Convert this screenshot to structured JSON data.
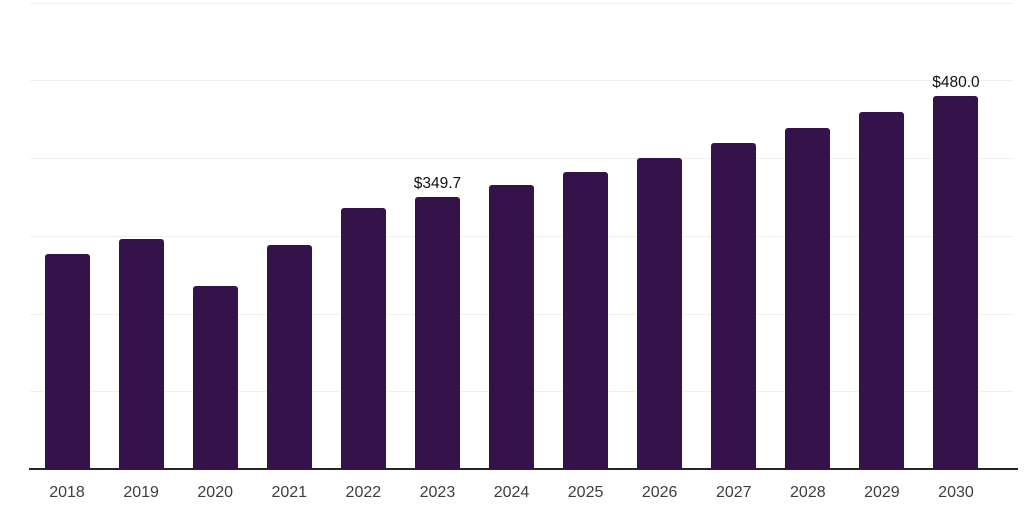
{
  "chart_data": {
    "type": "bar",
    "title": "",
    "xlabel": "",
    "ylabel": "",
    "categories": [
      "2018",
      "2019",
      "2020",
      "2021",
      "2022",
      "2023",
      "2024",
      "2025",
      "2026",
      "2027",
      "2028",
      "2029",
      "2030"
    ],
    "values": [
      276.6,
      295.9,
      235.4,
      288.2,
      335.8,
      349.7,
      365.9,
      382.8,
      400.6,
      419.1,
      438.5,
      458.8,
      480.0
    ],
    "data_labels": [
      null,
      null,
      null,
      null,
      null,
      "$349.7",
      null,
      null,
      null,
      null,
      null,
      null,
      "$480.0"
    ],
    "ylim": [
      0,
      600
    ],
    "grid_interval": 100,
    "grid": "horizontal",
    "legend": "none",
    "style": {
      "bar_color": "#35124a",
      "grid_color": "#f0f0f0",
      "axis_color": "#262626",
      "tick_label_color": "#3d3d3d",
      "data_label_color": "#111111",
      "background": "#ffffff"
    }
  }
}
